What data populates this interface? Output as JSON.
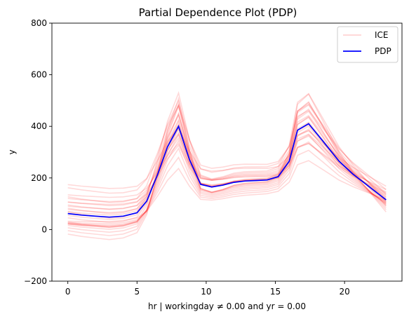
{
  "chart_data": {
    "type": "line",
    "title": "Partial Dependence Plot (PDP)",
    "xlabel": "hr | workingday ≠ 0.00 and yr = 0.00",
    "ylabel": "y",
    "xlim": [
      -1.15,
      24.15
    ],
    "ylim": [
      -200,
      800
    ],
    "xticks": [
      0,
      5,
      10,
      15,
      20
    ],
    "xtick_labels": [
      "0",
      "5",
      "10",
      "15",
      "20"
    ],
    "yticks": [
      -200,
      0,
      200,
      400,
      600,
      800
    ],
    "ytick_labels": [
      "−200",
      "0",
      "200",
      "400",
      "600",
      "800"
    ],
    "grid": false,
    "legend": "top-right",
    "legend_entries": [
      "ICE",
      "PDP"
    ],
    "x": [
      0,
      1,
      2,
      3,
      4,
      5,
      5.7,
      6.5,
      7.2,
      8,
      8.8,
      9.6,
      10.4,
      11.2,
      12,
      12.8,
      13.6,
      14.4,
      15.2,
      16,
      16.6,
      17.4,
      18.4,
      19.6,
      20.6,
      21.8,
      23
    ],
    "series": [
      {
        "name": "PDP",
        "color": "#0000ff",
        "values": [
          62,
          56,
          52,
          48,
          52,
          65,
          110,
          215,
          320,
          400,
          270,
          175,
          165,
          172,
          183,
          188,
          190,
          192,
          205,
          265,
          385,
          410,
          345,
          265,
          215,
          165,
          115
        ]
      },
      {
        "name": "ICE",
        "color": "#ff0000",
        "alpha": 0.15,
        "offsets": [
          -90,
          -75,
          -62,
          -50,
          -40,
          -30,
          -22,
          -15,
          -10,
          -6,
          -3,
          -1,
          0,
          1,
          3,
          6,
          10,
          14,
          19,
          25,
          32,
          40,
          50,
          60,
          72,
          85,
          100
        ],
        "scales": [
          0.55,
          0.7,
          0.82,
          0.92,
          1.0,
          1.08,
          1.18,
          1.3,
          1.42,
          1.55,
          0.65,
          0.78,
          0.88,
          0.95,
          1.02,
          1.1,
          1.2,
          1.35,
          0.6,
          0.75,
          0.9,
          1.05,
          1.22,
          1.4,
          0.7,
          1.15,
          1.0
        ]
      }
    ]
  },
  "colors": {
    "ice": "#ff0000",
    "pdp": "#0000ff",
    "frame": "#000000",
    "legend_border": "#cccccc"
  }
}
